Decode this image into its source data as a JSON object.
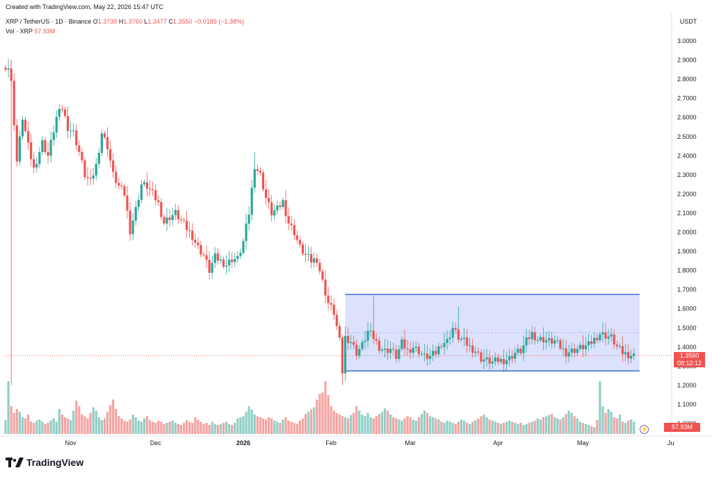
{
  "credit": "Created with TradingView.com, May 22, 2026 15:47 UTC",
  "legend": {
    "symbol": "XRP / TetherUS · 1D · Binance",
    "o_label": "O",
    "o": "1.3739",
    "h_label": "H",
    "h": "1.3760",
    "l_label": "L",
    "l": "1.3477",
    "c_label": "C",
    "c": "1.3550",
    "change": "−0.0189 (−1.38%)",
    "vol_label": "Vol · XRP",
    "vol": "57.93M"
  },
  "price_tag": {
    "price": "1.3550",
    "countdown": "08:12:12"
  },
  "vol_tag": "57.93M",
  "logo": "TradingView",
  "colors": {
    "up": "#26a69a",
    "down": "#ef5350",
    "up_vol": "#8fcfc6",
    "down_vol": "#f5a3a1",
    "box_fill": "#d6ddfb",
    "box_line": "#3f6ad8"
  },
  "chart_data": {
    "type": "candlestick",
    "currency_label": "USDT",
    "y_ticks": [
      "3.0000",
      "2.9000",
      "2.8000",
      "2.7000",
      "2.6000",
      "2.5000",
      "2.4000",
      "2.3000",
      "2.2000",
      "2.1000",
      "2.0000",
      "1.9000",
      "1.8000",
      "1.7000",
      "1.6000",
      "1.5000",
      "1.4000",
      "1.3000",
      "1.2000",
      "1.1000",
      "1.0000"
    ],
    "ylim": [
      0.97,
      3.05
    ],
    "x_ticks": [
      {
        "label": "Nov",
        "day": 23,
        "bold": false
      },
      {
        "label": "Dec",
        "day": 53,
        "bold": false
      },
      {
        "label": "2026",
        "day": 84,
        "bold": true
      },
      {
        "label": "Feb",
        "day": 115,
        "bold": false
      },
      {
        "label": "Mar",
        "day": 143,
        "bold": false
      },
      {
        "label": "Apr",
        "day": 174,
        "bold": false
      },
      {
        "label": "May",
        "day": 204,
        "bold": false
      },
      {
        "label": "Ju",
        "day": 235,
        "bold": false
      }
    ],
    "x_range_days": [
      0,
      226
    ],
    "keypoints": [
      [
        0,
        2.87
      ],
      [
        1,
        2.86
      ],
      [
        2,
        2.78
      ],
      [
        4,
        2.37
      ],
      [
        6,
        2.6
      ],
      [
        8,
        2.45
      ],
      [
        10,
        2.33
      ],
      [
        13,
        2.47
      ],
      [
        15,
        2.4
      ],
      [
        18,
        2.6
      ],
      [
        20,
        2.65
      ],
      [
        22,
        2.55
      ],
      [
        24,
        2.52
      ],
      [
        26,
        2.42
      ],
      [
        28,
        2.3
      ],
      [
        30,
        2.26
      ],
      [
        32,
        2.35
      ],
      [
        34,
        2.52
      ],
      [
        36,
        2.45
      ],
      [
        38,
        2.3
      ],
      [
        40,
        2.24
      ],
      [
        42,
        2.2
      ],
      [
        44,
        2.01
      ],
      [
        46,
        2.12
      ],
      [
        48,
        2.25
      ],
      [
        50,
        2.24
      ],
      [
        52,
        2.2
      ],
      [
        54,
        2.15
      ],
      [
        56,
        2.05
      ],
      [
        58,
        2.08
      ],
      [
        60,
        2.1
      ],
      [
        62,
        2.06
      ],
      [
        64,
        2.02
      ],
      [
        66,
        1.98
      ],
      [
        68,
        1.92
      ],
      [
        70,
        1.88
      ],
      [
        72,
        1.8
      ],
      [
        74,
        1.87
      ],
      [
        76,
        1.85
      ],
      [
        78,
        1.83
      ],
      [
        80,
        1.86
      ],
      [
        82,
        1.86
      ],
      [
        84,
        1.95
      ],
      [
        86,
        2.1
      ],
      [
        88,
        2.35
      ],
      [
        90,
        2.3
      ],
      [
        92,
        2.18
      ],
      [
        94,
        2.1
      ],
      [
        96,
        2.12
      ],
      [
        98,
        2.16
      ],
      [
        100,
        2.05
      ],
      [
        102,
        2.0
      ],
      [
        104,
        1.92
      ],
      [
        106,
        1.88
      ],
      [
        108,
        1.85
      ],
      [
        110,
        1.86
      ],
      [
        112,
        1.74
      ],
      [
        114,
        1.63
      ],
      [
        116,
        1.58
      ],
      [
        118,
        1.43
      ],
      [
        119,
        1.27
      ],
      [
        120,
        1.45
      ],
      [
        122,
        1.43
      ],
      [
        124,
        1.37
      ],
      [
        126,
        1.41
      ],
      [
        128,
        1.48
      ],
      [
        130,
        1.45
      ],
      [
        132,
        1.4
      ],
      [
        134,
        1.38
      ],
      [
        136,
        1.39
      ],
      [
        138,
        1.35
      ],
      [
        140,
        1.42
      ],
      [
        142,
        1.38
      ],
      [
        144,
        1.4
      ],
      [
        146,
        1.38
      ],
      [
        148,
        1.35
      ],
      [
        150,
        1.35
      ],
      [
        152,
        1.37
      ],
      [
        154,
        1.42
      ],
      [
        156,
        1.43
      ],
      [
        158,
        1.5
      ],
      [
        160,
        1.45
      ],
      [
        162,
        1.43
      ],
      [
        164,
        1.4
      ],
      [
        166,
        1.38
      ],
      [
        168,
        1.34
      ],
      [
        170,
        1.33
      ],
      [
        172,
        1.32
      ],
      [
        174,
        1.33
      ],
      [
        176,
        1.33
      ],
      [
        178,
        1.34
      ],
      [
        180,
        1.37
      ],
      [
        182,
        1.38
      ],
      [
        184,
        1.43
      ],
      [
        186,
        1.47
      ],
      [
        188,
        1.44
      ],
      [
        190,
        1.44
      ],
      [
        192,
        1.43
      ],
      [
        194,
        1.43
      ],
      [
        196,
        1.4
      ],
      [
        198,
        1.37
      ],
      [
        200,
        1.38
      ],
      [
        202,
        1.39
      ],
      [
        204,
        1.4
      ],
      [
        206,
        1.41
      ],
      [
        208,
        1.44
      ],
      [
        210,
        1.47
      ],
      [
        212,
        1.46
      ],
      [
        214,
        1.45
      ],
      [
        216,
        1.4
      ],
      [
        218,
        1.37
      ],
      [
        220,
        1.36
      ],
      [
        222,
        1.355
      ]
    ],
    "volume_rel": [
      0.25,
      0.95,
      0.5,
      0.38,
      0.45,
      0.4,
      0.3,
      0.28,
      0.35,
      0.22,
      0.2,
      0.24,
      0.26,
      0.22,
      0.18,
      0.2,
      0.24,
      0.28,
      0.22,
      0.45,
      0.35,
      0.3,
      0.28,
      0.25,
      0.42,
      0.6,
      0.5,
      0.35,
      0.32,
      0.28,
      0.38,
      0.48,
      0.42,
      0.3,
      0.25,
      0.28,
      0.4,
      0.52,
      0.62,
      0.45,
      0.32,
      0.28,
      0.24,
      0.22,
      0.26,
      0.35,
      0.3,
      0.24,
      0.22,
      0.28,
      0.32,
      0.25,
      0.22,
      0.2,
      0.24,
      0.22,
      0.18,
      0.2,
      0.22,
      0.24,
      0.2,
      0.18,
      0.16,
      0.2,
      0.25,
      0.22,
      0.2,
      0.3,
      0.26,
      0.22,
      0.18,
      0.2,
      0.16,
      0.22,
      0.18,
      0.16,
      0.18,
      0.2,
      0.22,
      0.18,
      0.16,
      0.2,
      0.28,
      0.3,
      0.32,
      0.4,
      0.5,
      0.44,
      0.35,
      0.32,
      0.3,
      0.28,
      0.26,
      0.3,
      0.28,
      0.24,
      0.22,
      0.2,
      0.26,
      0.3,
      0.24,
      0.22,
      0.2,
      0.18,
      0.24,
      0.28,
      0.36,
      0.4,
      0.44,
      0.48,
      0.62,
      0.72,
      0.75,
      0.95,
      0.7,
      0.5,
      0.42,
      0.38,
      0.35,
      0.32,
      0.3,
      0.28,
      0.34,
      0.38,
      0.5,
      0.42,
      0.35,
      0.32,
      0.38,
      0.3,
      0.28,
      0.32,
      0.36,
      0.4,
      0.46,
      0.42,
      0.35,
      0.3,
      0.28,
      0.26,
      0.24,
      0.28,
      0.32,
      0.3,
      0.26,
      0.24,
      0.3,
      0.36,
      0.42,
      0.38,
      0.32,
      0.3,
      0.28,
      0.26,
      0.22,
      0.2,
      0.24,
      0.22,
      0.2,
      0.18,
      0.22,
      0.26,
      0.24,
      0.2,
      0.18,
      0.22,
      0.25,
      0.28,
      0.32,
      0.35,
      0.3,
      0.26,
      0.24,
      0.22,
      0.2,
      0.18,
      0.2,
      0.22,
      0.24,
      0.22,
      0.2,
      0.18,
      0.2,
      0.16,
      0.18,
      0.2,
      0.22,
      0.24,
      0.28,
      0.26,
      0.3,
      0.32,
      0.34,
      0.36,
      0.3,
      0.28,
      0.26,
      0.3,
      0.36,
      0.42,
      0.38,
      0.32,
      0.28,
      0.22,
      0.2,
      0.18,
      0.16,
      0.14,
      0.12
    ],
    "range_box": {
      "day_from": 120,
      "day_to": 224,
      "top": 1.675,
      "bottom": 1.275,
      "midline": 1.475
    },
    "last_price": 1.355
  }
}
